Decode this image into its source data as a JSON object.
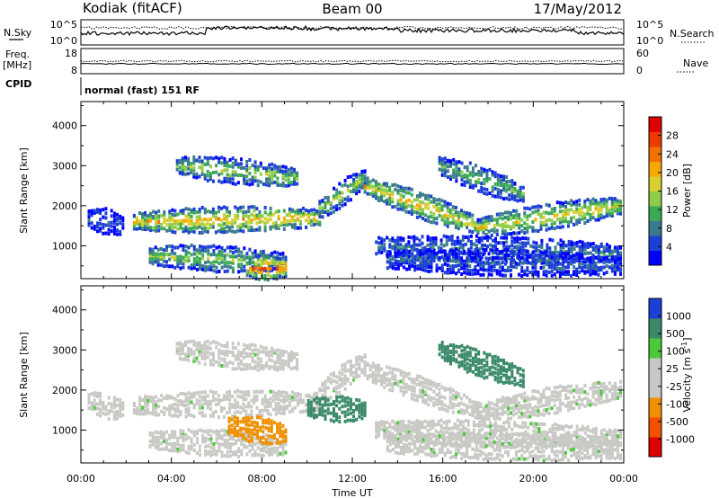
{
  "header": {
    "station": "Kodiak (fitACF)",
    "beam": "Beam 00",
    "date": "17/May/2012"
  },
  "sky_panel": {
    "left_label": "N.Sky",
    "right_label": "N.Search",
    "left_ticks": [
      "10^5",
      "10^0"
    ],
    "right_ticks": [
      "10^5",
      "10^0"
    ]
  },
  "freq_panel": {
    "left_label_line1": "Freq.",
    "left_label_line2": "[MHz]",
    "right_label": "Nave",
    "left_ticks": [
      "18",
      "8"
    ],
    "right_ticks": [
      "60",
      "0"
    ]
  },
  "cpid_panel": {
    "label": "CPID",
    "text": "normal (fast) 151 RF"
  },
  "chart_data": [
    {
      "type": "heatmap",
      "quantity": "power",
      "ylabel": "Slant Range [km]",
      "ylim": [
        180,
        4600
      ],
      "yticks": [
        1000,
        2000,
        3000,
        4000
      ],
      "xlim": [
        0,
        24
      ],
      "colorbar_label": "Power [dB]",
      "colorbar_ticks": [
        4,
        8,
        12,
        16,
        20,
        24,
        28
      ],
      "colorbar_range": [
        0,
        32
      ],
      "colors": [
        "#0000ff",
        "#1c3fd6",
        "#3a7a8e",
        "#3aaa55",
        "#8ecc4a",
        "#d8d030",
        "#f6a800",
        "#f07000",
        "#ec3a00",
        "#e00000"
      ],
      "echo_bands": [
        {
          "t_start": 0.3,
          "t_end": 1.8,
          "range_start_km": 1700,
          "range_end_km": 1500,
          "power_db": 6
        },
        {
          "t_start": 2.3,
          "t_end": 10.5,
          "range_start_km": 1600,
          "range_end_km": 1700,
          "power_db": 20
        },
        {
          "t_start": 10.5,
          "t_end": 12.5,
          "range_start_km": 1900,
          "range_end_km": 2700,
          "power_db": 14
        },
        {
          "t_start": 12.5,
          "t_end": 17.5,
          "range_start_km": 2500,
          "range_end_km": 1500,
          "power_db": 20
        },
        {
          "t_start": 17.5,
          "t_end": 23.8,
          "range_start_km": 1450,
          "range_end_km": 2000,
          "power_db": 18
        },
        {
          "t_start": 4.2,
          "t_end": 9.5,
          "range_start_km": 3000,
          "range_end_km": 2700,
          "power_db": 14
        },
        {
          "t_start": 15.8,
          "t_end": 19.5,
          "range_start_km": 3000,
          "range_end_km": 2300,
          "power_db": 12
        },
        {
          "t_start": 3.0,
          "t_end": 9.0,
          "range_start_km": 750,
          "range_end_km": 600,
          "power_db": 14
        },
        {
          "t_start": 7.3,
          "t_end": 9.0,
          "range_start_km": 450,
          "range_end_km": 450,
          "power_db": 24
        },
        {
          "t_start": 13.0,
          "t_end": 23.8,
          "range_start_km": 1000,
          "range_end_km": 800,
          "power_db": 8
        },
        {
          "t_start": 13.5,
          "t_end": 23.8,
          "range_start_km": 650,
          "range_end_km": 500,
          "power_db": 6
        }
      ]
    },
    {
      "type": "heatmap",
      "quantity": "velocity",
      "ylabel": "Slant Range [km]",
      "xlabel": "Time UT",
      "ylim": [
        180,
        4600
      ],
      "yticks": [
        1000,
        2000,
        3000,
        4000
      ],
      "xlim": [
        0,
        24
      ],
      "xticks": [
        "00:00",
        "04:00",
        "08:00",
        "12:00",
        "16:00",
        "20:00",
        "00:00"
      ],
      "colorbar_label": "Velocity [m s-1]",
      "colorbar_ticks": [
        "1000",
        "500",
        "100",
        "25",
        "-25",
        "-100",
        "-500",
        "-1000"
      ],
      "colors": [
        "#e00000",
        "#f05000",
        "#f09000",
        "#c8c8c4",
        "#c8c8c4",
        "#4cc83a",
        "#3a8a6a",
        "#1c3fd6"
      ],
      "echo_bands": [
        {
          "t_start": 0.3,
          "t_end": 1.8,
          "range_start_km": 1700,
          "range_end_km": 1500,
          "velocity_ms": 0
        },
        {
          "t_start": 2.3,
          "t_end": 10.5,
          "range_start_km": 1600,
          "range_end_km": 1700,
          "velocity_ms": 0
        },
        {
          "t_start": 10.5,
          "t_end": 12.5,
          "range_start_km": 1900,
          "range_end_km": 2700,
          "velocity_ms": 0
        },
        {
          "t_start": 12.5,
          "t_end": 17.5,
          "range_start_km": 2500,
          "range_end_km": 1500,
          "velocity_ms": 0
        },
        {
          "t_start": 17.5,
          "t_end": 23.8,
          "range_start_km": 1450,
          "range_end_km": 2000,
          "velocity_ms": 0
        },
        {
          "t_start": 4.2,
          "t_end": 9.5,
          "range_start_km": 3000,
          "range_end_km": 2700,
          "velocity_ms": 0
        },
        {
          "t_start": 15.8,
          "t_end": 19.5,
          "range_start_km": 3000,
          "range_end_km": 2300,
          "velocity_ms": 150
        },
        {
          "t_start": 3.0,
          "t_end": 9.0,
          "range_start_km": 750,
          "range_end_km": 600,
          "velocity_ms": 0
        },
        {
          "t_start": 6.5,
          "t_end": 9.0,
          "range_start_km": 1100,
          "range_end_km": 900,
          "velocity_ms": -300
        },
        {
          "t_start": 10.0,
          "t_end": 12.5,
          "range_start_km": 1550,
          "range_end_km": 1500,
          "velocity_ms": 300
        },
        {
          "t_start": 13.0,
          "t_end": 23.8,
          "range_start_km": 1000,
          "range_end_km": 800,
          "velocity_ms": 0
        },
        {
          "t_start": 13.5,
          "t_end": 23.8,
          "range_start_km": 650,
          "range_end_km": 500,
          "velocity_ms": 0
        }
      ]
    }
  ]
}
